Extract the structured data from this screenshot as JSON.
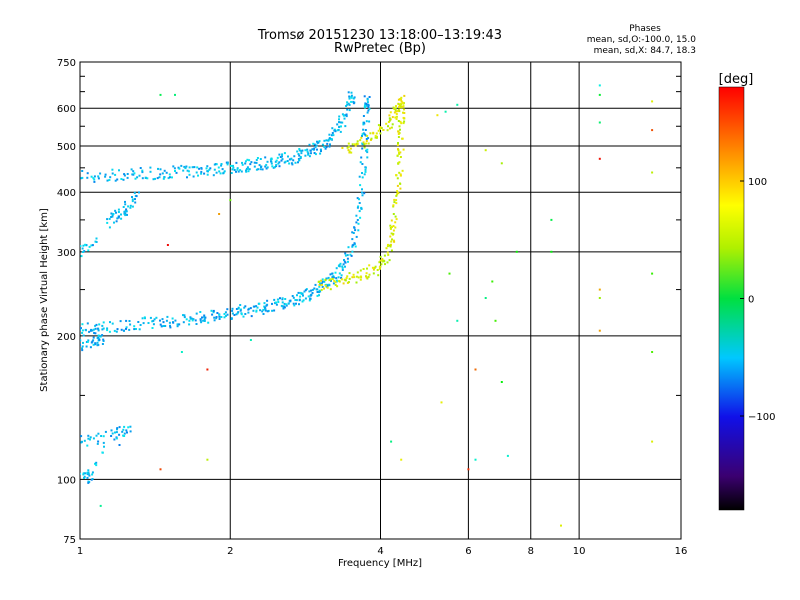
{
  "chart_data": {
    "type": "scatter",
    "title": "Tromsø 20151230 13:18:00–13:19:43",
    "subtitle": "RwPretec (Bp)",
    "xlabel": "Frequency [MHz]",
    "ylabel": "Stationary phase Virtual Height [km]",
    "x_scale": "log",
    "y_scale": "log",
    "xlim": [
      1,
      16
    ],
    "ylim": [
      75,
      750
    ],
    "x_ticks": [
      1,
      2,
      4,
      6,
      8,
      10,
      16
    ],
    "x_tick_labels": [
      "1",
      "2",
      "4",
      "6",
      "8",
      "10",
      "16"
    ],
    "y_ticks": [
      75,
      100,
      200,
      300,
      400,
      500,
      600,
      750
    ],
    "y_tick_labels": [
      "75",
      "100",
      "200",
      "300",
      "400",
      "500",
      "600",
      "750"
    ],
    "grid": true,
    "phase_box": {
      "heading": "Phases",
      "line1": "mean, sd,O:-100.0, 15.0",
      "line2": "mean, sd,X:  84.7, 18.3"
    },
    "colorbar": {
      "label": "[deg]",
      "range": [
        -180,
        180
      ],
      "ticks": [
        100,
        0,
        -100
      ],
      "tick_labels": [
        "100",
        "0",
        "−100"
      ],
      "colormap": "rainbow (black-purple-blue-cyan-green-yellow-orange-red)"
    },
    "series": [
      {
        "mode": "O",
        "phase": -100,
        "points": [
          [
            1.0,
            205
          ],
          [
            1.05,
            207
          ],
          [
            1.1,
            208
          ],
          [
            1.2,
            210
          ],
          [
            1.3,
            212
          ],
          [
            1.4,
            213
          ],
          [
            1.5,
            214
          ],
          [
            1.6,
            215
          ],
          [
            1.7,
            217
          ],
          [
            1.8,
            219
          ],
          [
            1.9,
            221
          ],
          [
            2.0,
            223
          ],
          [
            2.1,
            225
          ],
          [
            2.2,
            227
          ],
          [
            2.3,
            229
          ],
          [
            2.4,
            231
          ],
          [
            2.5,
            233
          ],
          [
            2.6,
            236
          ],
          [
            2.7,
            239
          ],
          [
            2.8,
            242
          ],
          [
            2.9,
            246
          ],
          [
            3.0,
            250
          ],
          [
            3.1,
            256
          ],
          [
            3.2,
            263
          ],
          [
            3.3,
            272
          ],
          [
            3.4,
            285
          ],
          [
            3.5,
            305
          ],
          [
            3.6,
            340
          ],
          [
            3.65,
            380
          ],
          [
            3.7,
            440
          ],
          [
            3.72,
            500
          ],
          [
            3.74,
            560
          ],
          [
            3.75,
            620
          ],
          [
            1.0,
            430
          ],
          [
            1.1,
            432
          ],
          [
            1.2,
            434
          ],
          [
            1.3,
            436
          ],
          [
            1.4,
            438
          ],
          [
            1.5,
            440
          ],
          [
            1.6,
            442
          ],
          [
            1.7,
            444
          ],
          [
            1.8,
            446
          ],
          [
            1.9,
            448
          ],
          [
            2.0,
            450
          ],
          [
            2.1,
            453
          ],
          [
            2.2,
            456
          ],
          [
            2.3,
            459
          ],
          [
            2.4,
            462
          ],
          [
            2.5,
            466
          ],
          [
            2.6,
            470
          ],
          [
            2.7,
            475
          ],
          [
            2.8,
            480
          ],
          [
            2.9,
            487
          ],
          [
            3.0,
            495
          ],
          [
            3.1,
            505
          ],
          [
            3.2,
            520
          ],
          [
            3.3,
            545
          ],
          [
            3.4,
            580
          ],
          [
            3.5,
            630
          ],
          [
            1.0,
            190
          ],
          [
            1.05,
            193
          ],
          [
            1.1,
            195
          ],
          [
            1.0,
            120
          ],
          [
            1.1,
            122
          ],
          [
            1.2,
            125
          ],
          [
            1.25,
            128
          ],
          [
            1.0,
            103
          ],
          [
            1.05,
            101
          ],
          [
            1.15,
            350
          ],
          [
            1.2,
            360
          ],
          [
            1.25,
            375
          ],
          [
            1.3,
            390
          ],
          [
            1.0,
            300
          ],
          [
            1.05,
            305
          ]
        ]
      },
      {
        "mode": "X",
        "phase": 85,
        "points": [
          [
            3.0,
            255
          ],
          [
            3.2,
            258
          ],
          [
            3.4,
            262
          ],
          [
            3.6,
            267
          ],
          [
            3.8,
            272
          ],
          [
            4.0,
            280
          ],
          [
            4.1,
            290
          ],
          [
            4.2,
            310
          ],
          [
            4.25,
            340
          ],
          [
            4.3,
            380
          ],
          [
            4.35,
            430
          ],
          [
            4.38,
            480
          ],
          [
            4.4,
            530
          ],
          [
            4.42,
            580
          ],
          [
            4.4,
            620
          ],
          [
            3.4,
            490
          ],
          [
            3.6,
            500
          ],
          [
            3.8,
            520
          ],
          [
            4.0,
            540
          ],
          [
            4.2,
            560
          ],
          [
            4.3,
            590
          ],
          [
            4.35,
            620
          ]
        ]
      }
    ],
    "scattered_points": [
      [
        1.45,
        640
      ],
      [
        1.55,
        640
      ],
      [
        5.4,
        590
      ],
      [
        5.7,
        610
      ],
      [
        5.2,
        580
      ],
      [
        6.5,
        490
      ],
      [
        7.0,
        460
      ],
      [
        8.8,
        350
      ],
      [
        8.8,
        300
      ],
      [
        11.0,
        670
      ],
      [
        11.0,
        640
      ],
      [
        14.0,
        620
      ],
      [
        14.0,
        540
      ],
      [
        11.0,
        560
      ],
      [
        11.0,
        470
      ],
      [
        14.0,
        440
      ],
      [
        14.0,
        270
      ],
      [
        11.0,
        250
      ],
      [
        11.0,
        240
      ],
      [
        7.5,
        300
      ],
      [
        6.7,
        260
      ],
      [
        6.5,
        240
      ],
      [
        6.8,
        215
      ],
      [
        7.0,
        160
      ],
      [
        6.2,
        170
      ],
      [
        6.2,
        110
      ],
      [
        6.0,
        105
      ],
      [
        7.2,
        112
      ],
      [
        5.3,
        145
      ],
      [
        4.4,
        110
      ],
      [
        4.2,
        120
      ],
      [
        9.2,
        80
      ],
      [
        1.45,
        105
      ],
      [
        1.8,
        110
      ],
      [
        5.5,
        270
      ],
      [
        5.7,
        215
      ],
      [
        11.0,
        205
      ],
      [
        14.0,
        185
      ],
      [
        14.0,
        120
      ],
      [
        1.1,
        88
      ],
      [
        2.2,
        196
      ],
      [
        1.8,
        170
      ],
      [
        1.6,
        185
      ],
      [
        1.9,
        360
      ],
      [
        2.0,
        385
      ],
      [
        1.5,
        310
      ]
    ]
  }
}
